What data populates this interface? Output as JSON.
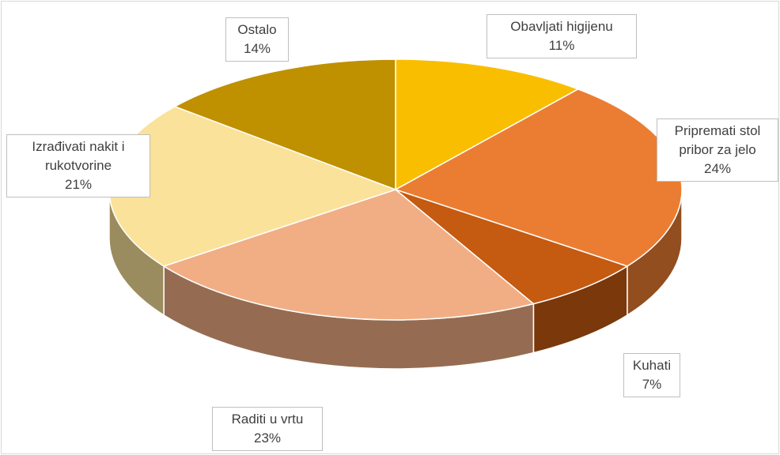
{
  "chart_data": {
    "type": "pie",
    "categories": [
      "Obavljati higijenu",
      "Pripremati stol pribor za jelo",
      "Kuhati",
      "Raditi u vrtu",
      "Izrađivati nakit i rukotvorine",
      "Ostalo"
    ],
    "values": [
      11,
      24,
      7,
      23,
      21,
      14
    ],
    "value_labels": [
      "11%",
      "24%",
      "7%",
      "23%",
      "21%",
      "14%"
    ],
    "colors": [
      "#f9be00",
      "#eb7d32",
      "#c55a11",
      "#f1ae84",
      "#fae29a",
      "#bf9000"
    ]
  }
}
